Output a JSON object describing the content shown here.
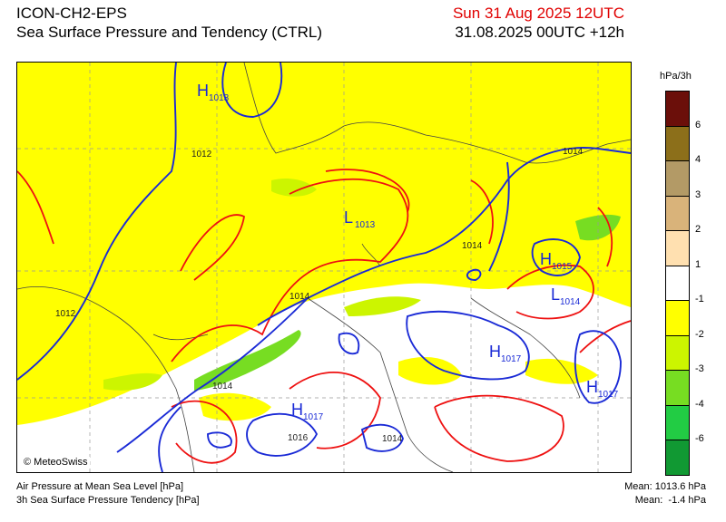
{
  "header": {
    "model": "ICON-CH2-EPS",
    "product": "Sea Surface Pressure and Tendency (CTRL)",
    "valid_time": "Sun 31 Aug 2025 12UTC",
    "run_time": "31.08.2025 00UTC +12h"
  },
  "legend": {
    "unit": "hPa/3h",
    "classes": [
      {
        "label": "6",
        "color": "#6b0f0a"
      },
      {
        "label": "4",
        "color": "#8c6f1a"
      },
      {
        "label": "3",
        "color": "#b39a66"
      },
      {
        "label": "2",
        "color": "#d9b37a"
      },
      {
        "label": "1",
        "color": "#ffe0b0"
      },
      {
        "label": "-1",
        "color": "#ffffff"
      },
      {
        "label": "-2",
        "color": "#ffff00"
      },
      {
        "label": "-3",
        "color": "#ccf500"
      },
      {
        "label": "-4",
        "color": "#77dd22"
      },
      {
        "label": "-6",
        "color": "#22cc44"
      },
      {
        "label": "",
        "color": "#119933"
      }
    ]
  },
  "map": {
    "pressure_centers": [
      {
        "type": "H",
        "value": "1013"
      },
      {
        "type": "L",
        "value": "1013"
      },
      {
        "type": "H",
        "value": "1015"
      },
      {
        "type": "L",
        "value": "1014"
      },
      {
        "type": "H",
        "value": "1017"
      },
      {
        "type": "H",
        "value": "1017"
      },
      {
        "type": "H",
        "value": "1017"
      }
    ],
    "isobar_labels": [
      "1012",
      "1014",
      "1014",
      "1014",
      "1012",
      "1014",
      "1016",
      "1014"
    ],
    "copyright": "© MeteoSwiss"
  },
  "footer": {
    "line1": "Air Pressure at Mean Sea Level [hPa]",
    "line2": "3h Sea Surface Pressure Tendency [hPa]",
    "mean1": "Mean: 1013.6 hPa",
    "mean2": "Mean:  -1.4 hPa"
  }
}
